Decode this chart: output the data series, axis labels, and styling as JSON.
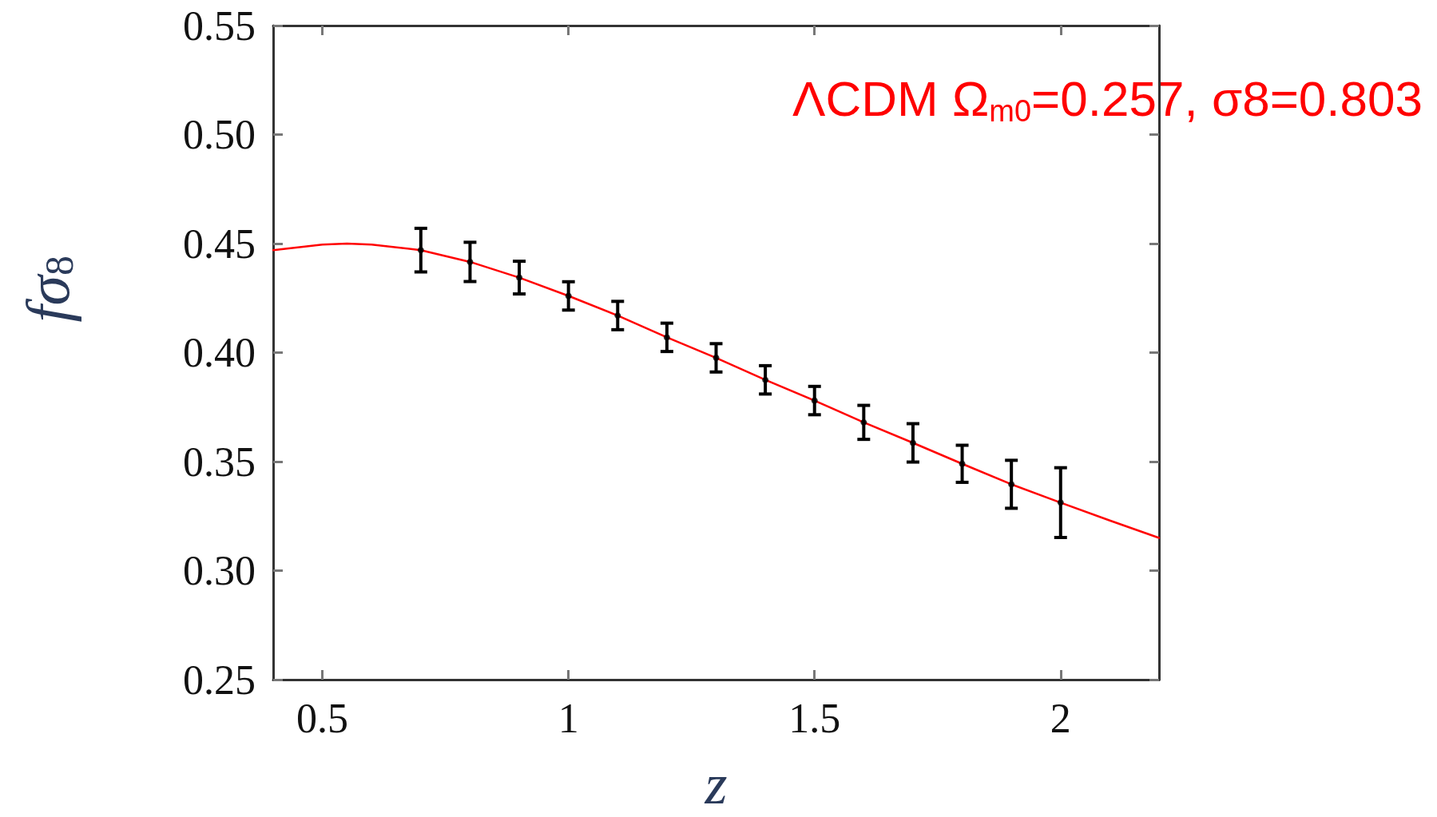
{
  "chart_data": {
    "type": "scatter",
    "xlabel": "z",
    "ylabel": "fσ$_{8}$",
    "annotations": [
      "ΛCDM Ω$_{m0}$=0.257, σ8=0.803"
    ],
    "xlim": [
      0.4,
      2.2
    ],
    "xticks": [
      0.5,
      1,
      1.5,
      2
    ],
    "ylim": [
      0.25,
      0.55
    ],
    "yticks": [
      0.25,
      {
        "value": 0.3,
        "label": "0.30"
      },
      0.35,
      {
        "value": 0.4,
        "label": "0.40"
      },
      0.45,
      {
        "value": 0.5,
        "label": "0.50"
      },
      0.55
    ],
    "grid": false,
    "series": [
      {
        "type": "line",
        "color": "#ff0000",
        "line_style": "solid",
        "marker": "none",
        "x": [
          0.4,
          0.5,
          0.55,
          0.6,
          0.7,
          0.8,
          0.9,
          1.0,
          1.1,
          1.2,
          1.3,
          1.4,
          1.5,
          1.6,
          1.7,
          1.8,
          1.9,
          2.0,
          2.1,
          2.2
        ],
        "values": [
          0.447,
          0.4495,
          0.45,
          0.4495,
          0.447,
          0.4416,
          0.4344,
          0.426,
          0.417,
          0.407,
          0.3976,
          0.3875,
          0.378,
          0.368,
          0.3586,
          0.349,
          0.3396,
          0.3312,
          0.323,
          0.315
        ]
      },
      {
        "color": "#000000",
        "marker": "circle",
        "x": [
          0.7,
          0.8,
          0.9,
          1.0,
          1.1,
          1.2,
          1.3,
          1.4,
          1.5,
          1.6,
          1.7,
          1.8,
          1.9,
          2.0
        ],
        "values": [
          0.447,
          0.4416,
          0.4344,
          0.426,
          0.417,
          0.407,
          0.3976,
          0.3875,
          0.378,
          0.368,
          0.3586,
          0.349,
          0.3396,
          0.3312
        ],
        "errors": [
          0.01,
          0.009,
          0.0075,
          0.0065,
          0.0065,
          0.0065,
          0.0065,
          0.0065,
          0.0065,
          0.0078,
          0.0088,
          0.0085,
          0.011,
          0.016
        ]
      }
    ]
  }
}
